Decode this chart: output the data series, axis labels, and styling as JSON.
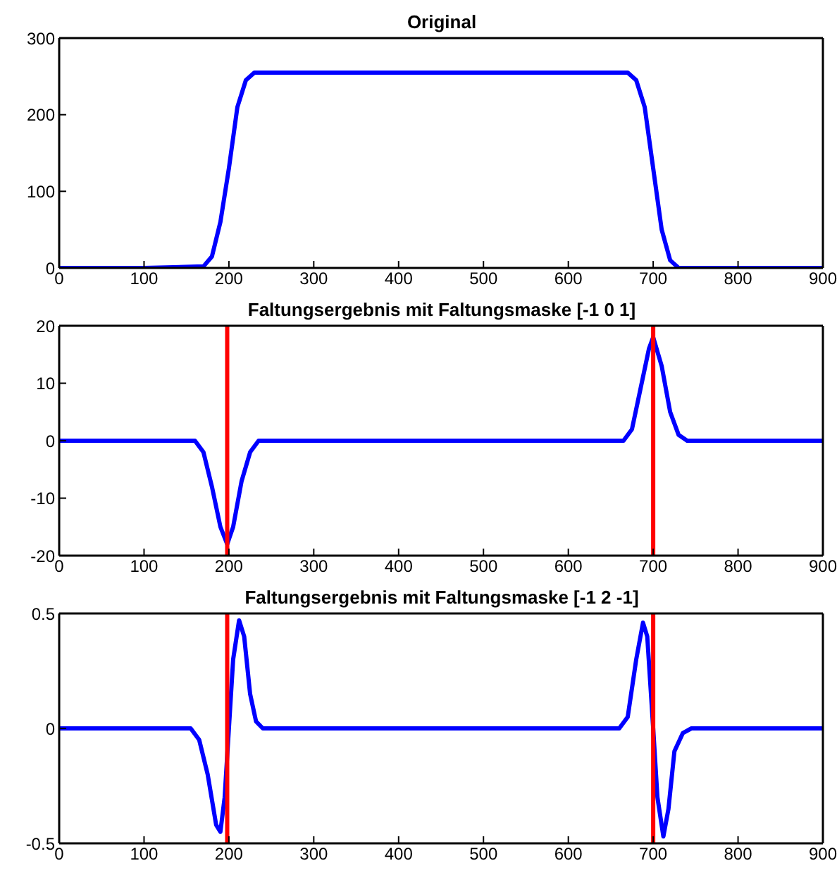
{
  "chart_data": [
    {
      "type": "line",
      "title": "Original",
      "xlim": [
        0,
        900
      ],
      "xticks": [
        0,
        100,
        200,
        300,
        400,
        500,
        600,
        700,
        800,
        900
      ],
      "ylim": [
        0,
        300
      ],
      "yticks": [
        0,
        100,
        200,
        300
      ],
      "series": [
        {
          "color": "#0000ff",
          "x": [
            0,
            100,
            170,
            180,
            190,
            200,
            210,
            220,
            230,
            670,
            680,
            690,
            700,
            710,
            720,
            730,
            900
          ],
          "values": [
            0,
            0,
            2,
            15,
            60,
            130,
            210,
            245,
            255,
            255,
            245,
            210,
            130,
            50,
            10,
            0,
            0
          ]
        }
      ]
    },
    {
      "type": "line",
      "title": "Faltungsergebnis mit Faltungsmaske [-1 0 1]",
      "xlim": [
        0,
        900
      ],
      "xticks": [
        0,
        100,
        200,
        300,
        400,
        500,
        600,
        700,
        800,
        900
      ],
      "ylim": [
        -20,
        20
      ],
      "yticks": [
        -20,
        -10,
        0,
        10,
        20
      ],
      "series": [
        {
          "color": "#0000ff",
          "x": [
            0,
            160,
            170,
            180,
            190,
            198,
            205,
            215,
            225,
            235,
            665,
            675,
            685,
            695,
            700,
            710,
            720,
            730,
            740,
            900
          ],
          "values": [
            0,
            0,
            -2,
            -8,
            -15,
            -18,
            -15,
            -7,
            -2,
            0,
            0,
            2,
            9,
            16,
            18,
            13,
            5,
            1,
            0,
            0
          ]
        }
      ],
      "ref_lines": [
        {
          "axis": "x",
          "value": 198,
          "color": "#ff0000"
        },
        {
          "axis": "x",
          "value": 700,
          "color": "#ff0000"
        }
      ]
    },
    {
      "type": "line",
      "title": "Faltungsergebnis mit Faltungsmaske [-1 2 -1]",
      "xlim": [
        0,
        900
      ],
      "xticks": [
        0,
        100,
        200,
        300,
        400,
        500,
        600,
        700,
        800,
        900
      ],
      "ylim": [
        -0.5,
        0.5
      ],
      "yticks": [
        -0.5,
        0,
        0.5
      ],
      "series": [
        {
          "color": "#0000ff",
          "x": [
            0,
            155,
            165,
            175,
            185,
            190,
            195,
            200,
            205,
            212,
            218,
            225,
            232,
            240,
            660,
            670,
            680,
            688,
            693,
            700,
            705,
            712,
            718,
            725,
            735,
            745,
            900
          ],
          "values": [
            0,
            0,
            -0.05,
            -0.2,
            -0.42,
            -0.45,
            -0.3,
            0,
            0.3,
            0.47,
            0.4,
            0.15,
            0.03,
            0,
            0,
            0.05,
            0.3,
            0.46,
            0.4,
            0,
            -0.3,
            -0.47,
            -0.35,
            -0.1,
            -0.02,
            0,
            0
          ]
        }
      ],
      "ref_lines": [
        {
          "axis": "x",
          "value": 198,
          "color": "#ff0000"
        },
        {
          "axis": "x",
          "value": 700,
          "color": "#ff0000"
        }
      ]
    }
  ]
}
